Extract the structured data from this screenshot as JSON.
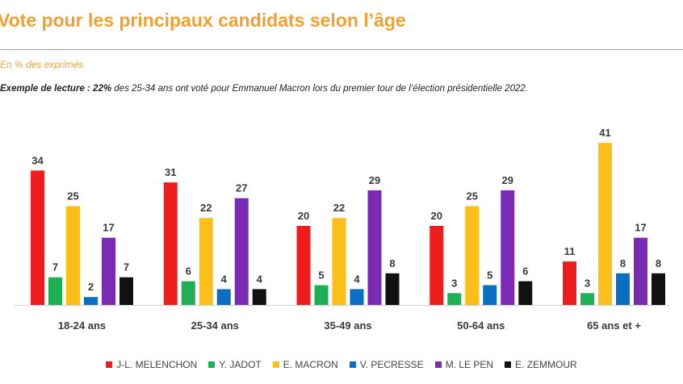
{
  "header": {
    "title": "Vote pour les principaux candidats selon l’âge",
    "subtitle": "En % des exprimés",
    "reading_prefix": "Exemple de lecture : ",
    "reading_value": "22%",
    "reading_rest": " des 25-34 ans ont voté pour Emmanuel Macron lors du premier tour de l’élection présidentielle 2022."
  },
  "chart_data": {
    "type": "bar",
    "title": "Vote pour les principaux candidats selon l’âge",
    "ylabel": "En % des exprimés",
    "xlabel": "",
    "ylim": [
      0,
      45
    ],
    "grid": false,
    "legend_position": "bottom",
    "categories": [
      "18-24 ans",
      "25-34 ans",
      "35-49 ans",
      "50-64 ans",
      "65 ans et +"
    ],
    "series": [
      {
        "name": "J-L. MELENCHON",
        "color": "#ee1c1c",
        "values": [
          34,
          31,
          20,
          20,
          11
        ]
      },
      {
        "name": "Y. JADOT",
        "color": "#1db054",
        "values": [
          7,
          6,
          5,
          3,
          3
        ]
      },
      {
        "name": "E. MACRON",
        "color": "#fcbe18",
        "values": [
          25,
          22,
          22,
          25,
          41
        ]
      },
      {
        "name": "V. PECRESSE",
        "color": "#0a6fc2",
        "values": [
          2,
          4,
          4,
          5,
          8
        ]
      },
      {
        "name": "M. LE PEN",
        "color": "#7b2ab5",
        "values": [
          17,
          27,
          29,
          29,
          17
        ]
      },
      {
        "name": "E. ZEMMOUR",
        "color": "#111111",
        "values": [
          7,
          4,
          8,
          6,
          8
        ]
      }
    ]
  }
}
